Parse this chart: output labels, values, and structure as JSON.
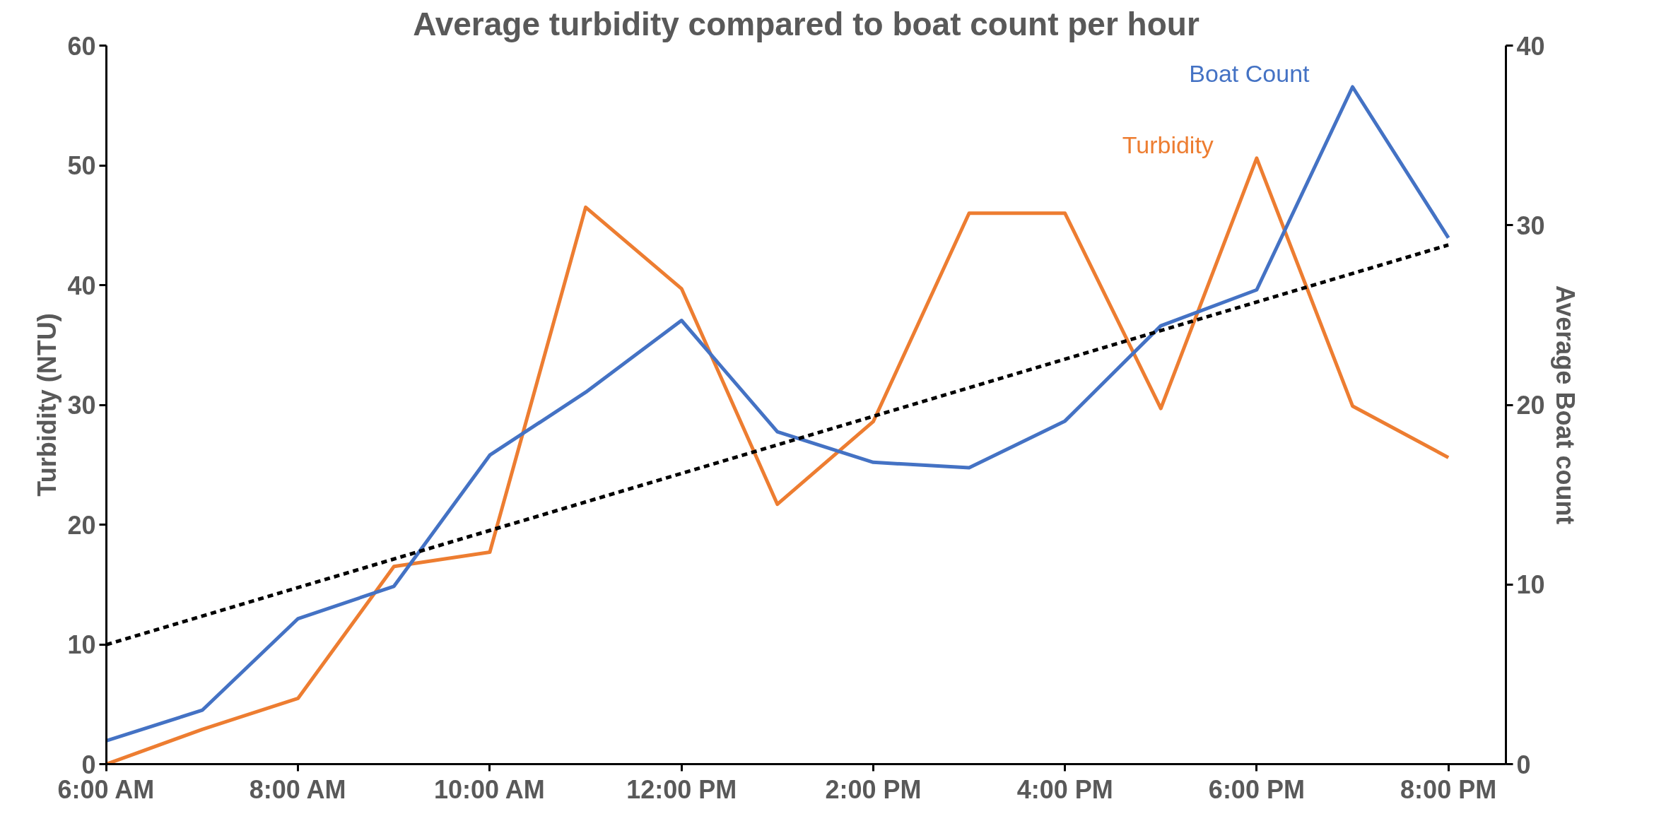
{
  "chart_data": {
    "type": "line",
    "title": "Average turbidity compared to boat count per hour",
    "ylabel": "Turbidity (NTU)",
    "y2label": "Average Boat count",
    "x": [
      6,
      7,
      8,
      9,
      10,
      11,
      12,
      13,
      14,
      15,
      16,
      17,
      18,
      19,
      20
    ],
    "series": [
      {
        "name": "Turbidity",
        "color": "#ed7d31",
        "values": [
          0,
          2.9,
          5.5,
          16.5,
          17.7,
          46.5,
          39.7,
          21.7,
          28.6,
          46.0,
          46.0,
          29.7,
          50.6,
          29.9,
          25.6
        ]
      },
      {
        "name": "Boat Count",
        "color": "#4472c4",
        "axis": "y2",
        "values": [
          1.3,
          3.0,
          8.1,
          9.9,
          17.2,
          20.7,
          24.7,
          18.5,
          16.8,
          16.5,
          19.1,
          24.4,
          26.4,
          37.7,
          29.3
        ]
      },
      {
        "color": "#000000",
        "axis": "y2",
        "line_style": "dashed",
        "x": [
          6,
          20
        ],
        "values": [
          6.65,
          28.9
        ]
      }
    ],
    "xlim": [
      6,
      20.6
    ],
    "ylim": [
      0,
      60
    ],
    "y2lim": [
      0,
      40
    ],
    "xticks": [
      {
        "value": 6,
        "label": "6:00 AM"
      },
      {
        "value": 8,
        "label": "8:00 AM"
      },
      {
        "value": 10,
        "label": "10:00 AM"
      },
      {
        "value": 12,
        "label": "12:00 PM"
      },
      {
        "value": 14,
        "label": "2:00 PM"
      },
      {
        "value": 16,
        "label": "4:00 PM"
      },
      {
        "value": 18,
        "label": "6:00 PM"
      },
      {
        "value": 20,
        "label": "8:00 PM"
      }
    ],
    "yticks": [
      0,
      10,
      20,
      30,
      40,
      50,
      60
    ],
    "y2ticks": [
      0,
      10,
      20,
      30,
      40
    ],
    "grid": false,
    "marker": "none",
    "line_style": "solid"
  }
}
